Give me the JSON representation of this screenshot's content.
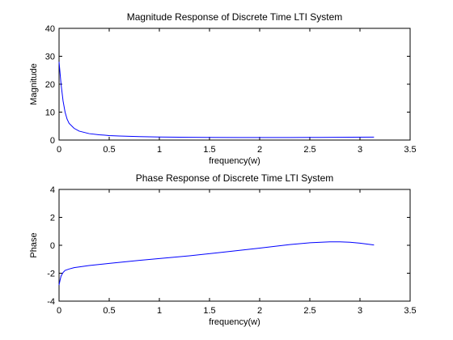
{
  "chart_data": [
    {
      "type": "line",
      "title": "Magnitude Response of Discrete Time LTI System",
      "xlabel": "frequency(w)",
      "ylabel": "Magnitude",
      "xlim": [
        0,
        3.5
      ],
      "ylim": [
        0,
        40
      ],
      "xticks": [
        0,
        0.5,
        1,
        1.5,
        2,
        2.5,
        3,
        3.5
      ],
      "yticks": [
        0,
        10,
        20,
        30,
        40
      ],
      "xtick_labels": [
        "0",
        "0.5",
        "1",
        "1.5",
        "2",
        "2.5",
        "3",
        "3.5"
      ],
      "ytick_labels": [
        "0",
        "10",
        "20",
        "30",
        "40"
      ],
      "grid": false,
      "line_color": "#0000ff",
      "series": [
        {
          "x": [
            0,
            0.02,
            0.04,
            0.06,
            0.08,
            0.1,
            0.15,
            0.2,
            0.3,
            0.4,
            0.5,
            0.6,
            0.8,
            1.0,
            1.2,
            1.5,
            1.8,
            2.0,
            2.3,
            2.6,
            2.9,
            3.14
          ],
          "y": [
            28,
            20,
            14,
            10,
            7.5,
            6,
            4.2,
            3.2,
            2.3,
            1.9,
            1.6,
            1.45,
            1.25,
            1.1,
            1.0,
            0.95,
            0.9,
            0.9,
            0.9,
            0.95,
            1.0,
            1.05
          ]
        }
      ]
    },
    {
      "type": "line",
      "title": "Phase Response of Discrete Time LTI System",
      "xlabel": "frequency(w)",
      "ylabel": "Phase",
      "xlim": [
        0,
        3.5
      ],
      "ylim": [
        -4,
        4
      ],
      "xticks": [
        0,
        0.5,
        1,
        1.5,
        2,
        2.5,
        3,
        3.5
      ],
      "yticks": [
        -4,
        -2,
        0,
        2,
        4
      ],
      "xtick_labels": [
        "0",
        "0.5",
        "1",
        "1.5",
        "2",
        "2.5",
        "3",
        "3.5"
      ],
      "ytick_labels": [
        "-4",
        "-2",
        "0",
        "2",
        "4"
      ],
      "grid": false,
      "line_color": "#0000ff",
      "series": [
        {
          "x": [
            0,
            0.01,
            0.02,
            0.04,
            0.06,
            0.1,
            0.15,
            0.2,
            0.3,
            0.5,
            0.8,
            1.0,
            1.3,
            1.6,
            2.0,
            2.3,
            2.5,
            2.7,
            2.8,
            2.9,
            3.0,
            3.14
          ],
          "y": [
            -2.85,
            -2.5,
            -2.2,
            -1.95,
            -1.8,
            -1.7,
            -1.6,
            -1.55,
            -1.45,
            -1.3,
            -1.08,
            -0.95,
            -0.75,
            -0.52,
            -0.2,
            0.05,
            0.18,
            0.25,
            0.25,
            0.22,
            0.15,
            0.02
          ]
        }
      ]
    }
  ]
}
